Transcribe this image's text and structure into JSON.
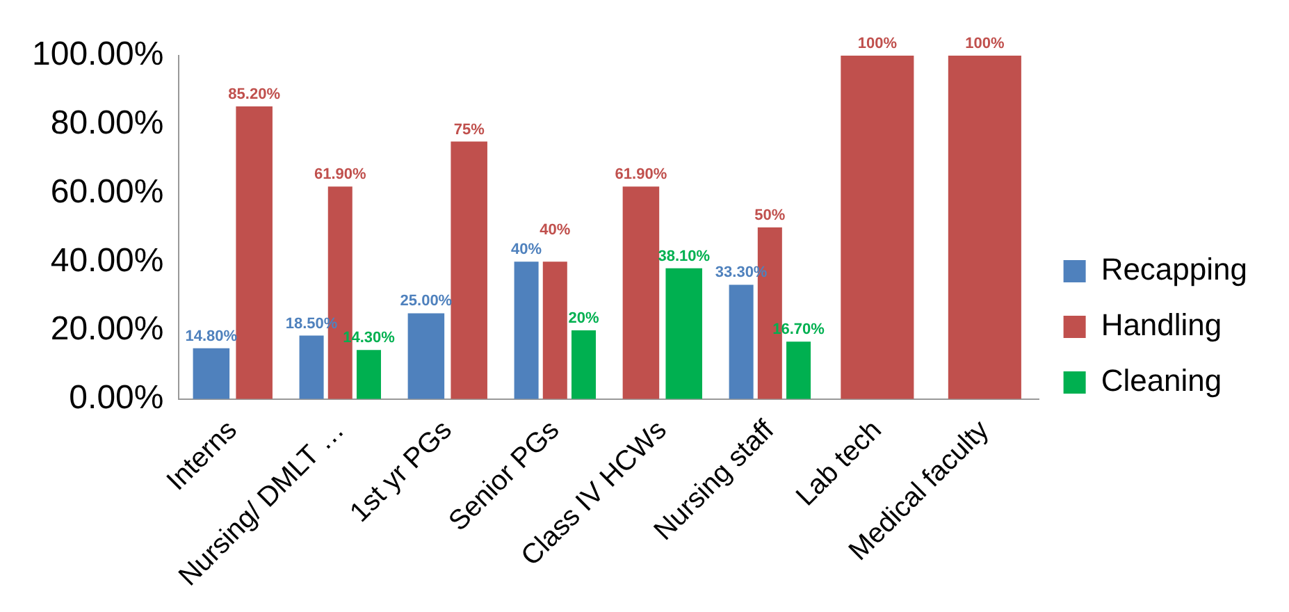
{
  "chart_data": {
    "type": "bar",
    "categories": [
      "Interns",
      "Nursing/ DMLT …",
      "1st yr PGs",
      "Senior PGs",
      "Class IV HCWs",
      "Nursing staff",
      "Lab tech",
      "Medical faculty"
    ],
    "series": [
      {
        "name": "Recapping",
        "color": "#4f81bd",
        "values": [
          14.8,
          18.5,
          25,
          40,
          null,
          33.3,
          null,
          null
        ],
        "value_labels": [
          "14.80%",
          "18.50%",
          "25.00%",
          "40%",
          null,
          "33.30%",
          null,
          null
        ]
      },
      {
        "name": "Handling",
        "color": "#c0504d",
        "values": [
          85.2,
          61.9,
          75,
          40,
          61.9,
          50,
          100,
          100
        ],
        "value_labels": [
          "85.20%",
          "61.90%",
          "75%",
          "40%",
          "61.90%",
          "50%",
          "100%",
          "100%"
        ]
      },
      {
        "name": "Cleaning",
        "color": "#00b050",
        "values": [
          null,
          14.3,
          null,
          20,
          38.1,
          16.7,
          null,
          null
        ],
        "value_labels": [
          null,
          "14.30%",
          null,
          "20%",
          "38.10%",
          "16.70%",
          null,
          null
        ]
      }
    ],
    "ylim": [
      0,
      100
    ],
    "yticks": [
      {
        "value": 0,
        "label": "0.00%"
      },
      {
        "value": 20,
        "label": "20.00%"
      },
      {
        "value": 40,
        "label": "40.00%"
      },
      {
        "value": 60,
        "label": "60.00%"
      },
      {
        "value": 80,
        "label": "80.00%"
      },
      {
        "value": 100,
        "label": "100.00%"
      }
    ],
    "grid": false,
    "legend": "right"
  }
}
